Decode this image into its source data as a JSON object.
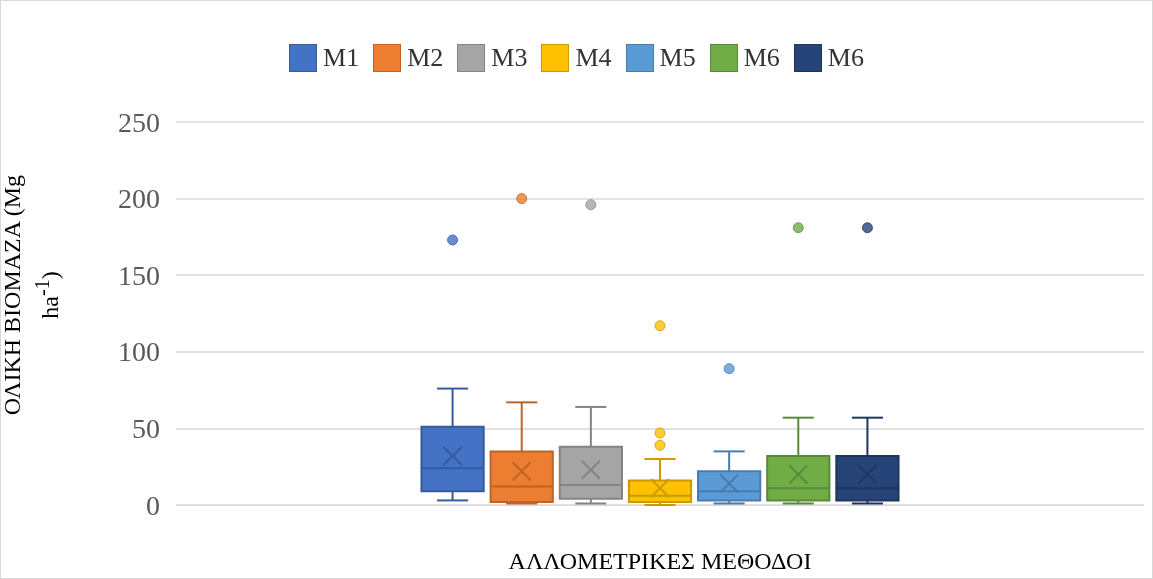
{
  "chart_data": {
    "type": "box",
    "xlabel": "ΑΛΛΟΜΕΤΡΙΚΕΣ ΜΕΘΟΔΟΙ",
    "ylabel": "ΟΛΙΚΗ ΒΙΟΜΑΖΑ (Mg ha$^{-1}$)",
    "categories": [
      null
    ],
    "ylim": [
      0,
      250
    ],
    "yticks": [
      0,
      50,
      100,
      150,
      200,
      250
    ],
    "grid": "y",
    "legend": "top",
    "series": [
      {
        "name": "M1",
        "color": "#4472c4",
        "boxes": [
          {
            "low": 3,
            "q1": 9,
            "median": 24,
            "q3": 51,
            "high": 76,
            "mean": 32,
            "outliers": [
              173
            ]
          }
        ]
      },
      {
        "name": "M2",
        "color": "#ed7d31",
        "boxes": [
          {
            "low": 1,
            "q1": 2,
            "median": 12,
            "q3": 35,
            "high": 67,
            "mean": 22,
            "outliers": [
              200
            ]
          }
        ]
      },
      {
        "name": "M3",
        "color": "#a5a5a5",
        "boxes": [
          {
            "low": 1,
            "q1": 4,
            "median": 13,
            "q3": 38,
            "high": 64,
            "mean": 23,
            "outliers": [
              196
            ]
          }
        ]
      },
      {
        "name": "M4",
        "color": "#ffc000",
        "boxes": [
          {
            "low": 0,
            "q1": 2,
            "median": 6,
            "q3": 16,
            "high": 30,
            "mean": 11,
            "outliers": [
              117,
              47,
              39
            ]
          }
        ]
      },
      {
        "name": "M5",
        "color": "#5b9bd5",
        "boxes": [
          {
            "low": 1,
            "q1": 3,
            "median": 9,
            "q3": 22,
            "high": 35,
            "mean": 14,
            "outliers": [
              89
            ]
          }
        ]
      },
      {
        "name": "M6",
        "color": "#70ad47",
        "boxes": [
          {
            "low": 1,
            "q1": 3,
            "median": 11,
            "q3": 32,
            "high": 57,
            "mean": 20,
            "outliers": [
              181
            ]
          }
        ]
      },
      {
        "name": "M6",
        "color": "#264478",
        "boxes": [
          {
            "low": 1,
            "q1": 3,
            "median": 11,
            "q3": 32,
            "high": 57,
            "mean": 20,
            "outliers": [
              181
            ]
          }
        ]
      }
    ]
  }
}
